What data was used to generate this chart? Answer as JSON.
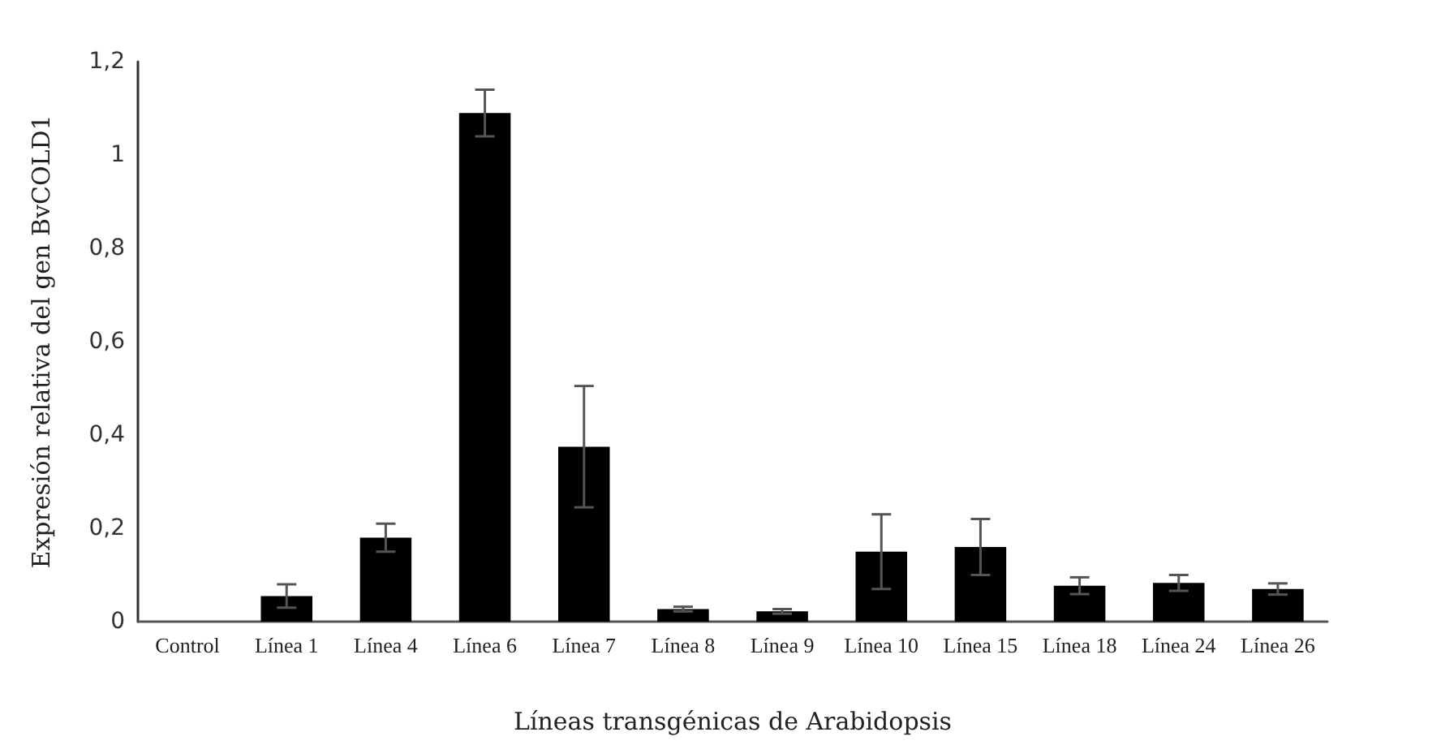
{
  "chart_data": {
    "type": "bar",
    "xlabel": "Líneas transgénicas de Arabidopsis",
    "ylabel": "Expresión relativa del gen BvCOLD1",
    "categories": [
      "Control",
      "Línea 1",
      "Línea 4",
      "Línea 6",
      "Línea 7",
      "Línea 8",
      "Línea 9",
      "Línea 10",
      "Línea 15",
      "Línea 18",
      "Línea 24",
      "Línea 26"
    ],
    "values": [
      0,
      0.055,
      0.18,
      1.09,
      0.375,
      0.027,
      0.022,
      0.15,
      0.16,
      0.077,
      0.083,
      0.07
    ],
    "errors": [
      null,
      0.025,
      0.03,
      0.05,
      0.13,
      0.005,
      0.005,
      0.08,
      0.06,
      0.018,
      0.017,
      0.012
    ],
    "color": "#000000",
    "ylim": [
      0,
      1.2
    ],
    "yticks": [
      {
        "value": 0,
        "label": "0"
      },
      {
        "value": 0.2,
        "label": "0,2"
      },
      {
        "value": 0.4,
        "label": "0,4"
      },
      {
        "value": 0.6,
        "label": "0,6"
      },
      {
        "value": 0.8,
        "label": "0,8"
      },
      {
        "value": 1,
        "label": "1"
      },
      {
        "value": 1.2,
        "label": "1,2"
      }
    ],
    "grid": false
  }
}
